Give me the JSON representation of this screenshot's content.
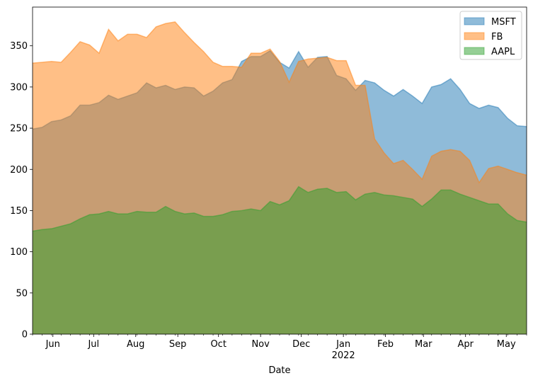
{
  "chart_data": {
    "type": "area",
    "stacked": false,
    "xlabel": "Date",
    "ylabel": "",
    "title": "",
    "x_range": [
      "2021-05-17",
      "2022-05-16"
    ],
    "ylim": [
      0,
      397
    ],
    "y_ticks": [
      0,
      50,
      100,
      150,
      200,
      250,
      300,
      350
    ],
    "x_ticks": [
      {
        "date": "2021-06-01",
        "label": "Jun"
      },
      {
        "date": "2021-07-01",
        "label": "Jul"
      },
      {
        "date": "2021-08-01",
        "label": "Aug"
      },
      {
        "date": "2021-09-01",
        "label": "Sep"
      },
      {
        "date": "2021-10-01",
        "label": "Oct"
      },
      {
        "date": "2021-11-01",
        "label": "Nov"
      },
      {
        "date": "2021-12-01",
        "label": "Dec"
      },
      {
        "date": "2022-01-01",
        "label": "Jan",
        "sublabel": "2022"
      },
      {
        "date": "2022-02-01",
        "label": "Feb"
      },
      {
        "date": "2022-03-01",
        "label": "Mar"
      },
      {
        "date": "2022-04-01",
        "label": "Apr"
      },
      {
        "date": "2022-05-01",
        "label": "May"
      }
    ],
    "grid": false,
    "legend_position": "top-right",
    "dates": [
      "2021-05-17",
      "2021-05-24",
      "2021-05-31",
      "2021-06-07",
      "2021-06-14",
      "2021-06-21",
      "2021-06-28",
      "2021-07-05",
      "2021-07-12",
      "2021-07-19",
      "2021-07-26",
      "2021-08-02",
      "2021-08-09",
      "2021-08-16",
      "2021-08-23",
      "2021-08-30",
      "2021-09-06",
      "2021-09-13",
      "2021-09-20",
      "2021-09-27",
      "2021-10-04",
      "2021-10-11",
      "2021-10-18",
      "2021-10-25",
      "2021-11-01",
      "2021-11-08",
      "2021-11-15",
      "2021-11-22",
      "2021-11-29",
      "2021-12-06",
      "2021-12-13",
      "2021-12-20",
      "2021-12-27",
      "2022-01-03",
      "2022-01-10",
      "2022-01-17",
      "2022-01-24",
      "2022-01-31",
      "2022-02-07",
      "2022-02-14",
      "2022-02-21",
      "2022-02-28",
      "2022-03-07",
      "2022-03-14",
      "2022-03-21",
      "2022-03-28",
      "2022-04-04",
      "2022-04-11",
      "2022-04-18",
      "2022-04-25",
      "2022-05-02",
      "2022-05-09",
      "2022-05-16"
    ],
    "series": [
      {
        "name": "MSFT",
        "color": "#1f77b4",
        "values": [
          249,
          251,
          258,
          260,
          265,
          278,
          278,
          281,
          290,
          285,
          289,
          293,
          305,
          299,
          302,
          297,
          300,
          299,
          289,
          295,
          305,
          309,
          331,
          337,
          337,
          344,
          330,
          323,
          343,
          324,
          336,
          337,
          314,
          310,
          296,
          308,
          305,
          296,
          289,
          297,
          289,
          280,
          300,
          303,
          310,
          297,
          280,
          274,
          278,
          275,
          262,
          253,
          252
        ]
      },
      {
        "name": "FB",
        "color": "#ff7f0e",
        "values": [
          329,
          330,
          331,
          330,
          342,
          355,
          351,
          341,
          370,
          356,
          364,
          364,
          360,
          373,
          377,
          379,
          366,
          354,
          343,
          330,
          325,
          325,
          324,
          341,
          341,
          346,
          331,
          306,
          331,
          334,
          335,
          336,
          332,
          332,
          302,
          302,
          237,
          220,
          207,
          211,
          200,
          188,
          216,
          222,
          224,
          222,
          211,
          184,
          201,
          204,
          200,
          196,
          193
        ]
      },
      {
        "name": "AAPL",
        "color": "#2ca02c",
        "values": [
          125,
          127,
          128,
          131,
          134,
          140,
          145,
          146,
          149,
          146,
          146,
          149,
          148,
          148,
          155,
          149,
          146,
          147,
          143,
          143,
          145,
          149,
          150,
          152,
          150,
          161,
          157,
          162,
          179,
          172,
          176,
          177,
          172,
          173,
          163,
          170,
          172,
          169,
          168,
          166,
          164,
          155,
          164,
          175,
          175,
          170,
          166,
          162,
          158,
          158,
          146,
          138,
          136
        ]
      }
    ]
  }
}
